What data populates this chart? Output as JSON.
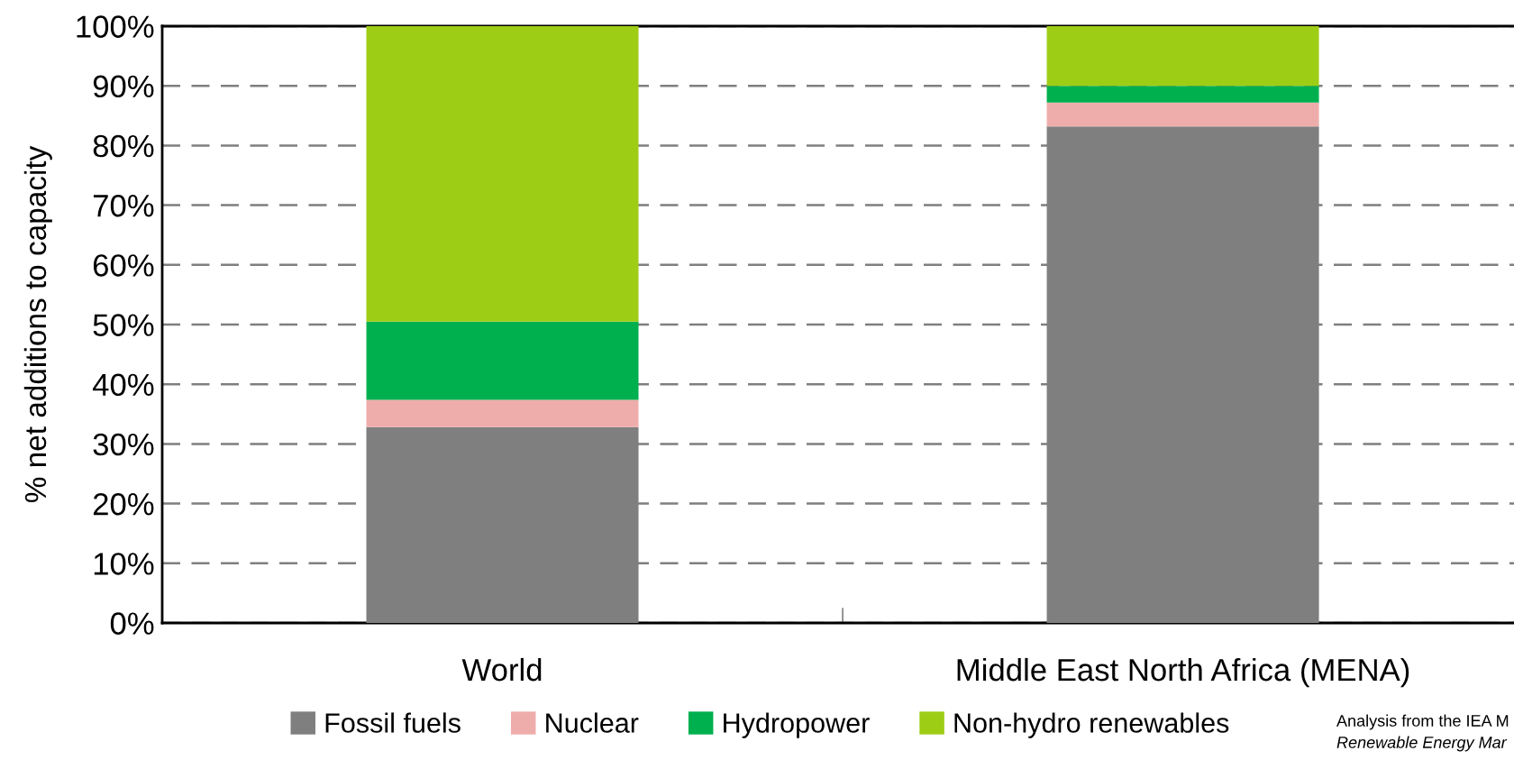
{
  "chart_data": {
    "type": "bar",
    "stacked": true,
    "ylabel": "% net additions to capacity",
    "categories": [
      "World",
      "Middle East North Africa (MENA)"
    ],
    "series": [
      {
        "name": "Fossil fuels",
        "color": "#7f7f7f",
        "values": [
          32.8,
          83.2
        ]
      },
      {
        "name": "Nuclear",
        "color": "#eeadab",
        "values": [
          4.6,
          4.0
        ]
      },
      {
        "name": "Hydropower",
        "color": "#00b04f",
        "values": [
          13.1,
          2.8
        ]
      },
      {
        "name": "Non-hydro renewables",
        "color": "#9ecd16",
        "values": [
          49.5,
          10.0
        ]
      }
    ],
    "ylim": [
      0,
      100
    ],
    "yticks": [
      {
        "value": 0,
        "label": "0%"
      },
      {
        "value": 10,
        "label": "10%"
      },
      {
        "value": 20,
        "label": "20%"
      },
      {
        "value": 30,
        "label": "30%"
      },
      {
        "value": 40,
        "label": "40%"
      },
      {
        "value": 50,
        "label": "50%"
      },
      {
        "value": 60,
        "label": "60%"
      },
      {
        "value": 70,
        "label": "70%"
      },
      {
        "value": 80,
        "label": "80%"
      },
      {
        "value": 90,
        "label": "90%"
      },
      {
        "value": 100,
        "label": "100%"
      }
    ],
    "grid": "y",
    "legend": "bottom",
    "annotations": [
      "Analysis from the IEA M",
      "Renewable Energy Mar"
    ]
  }
}
